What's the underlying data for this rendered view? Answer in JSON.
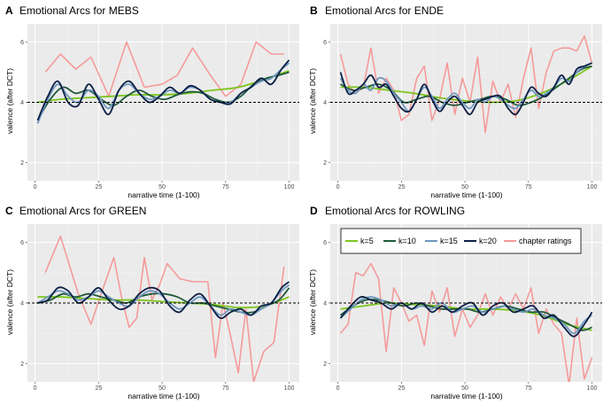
{
  "figure": {
    "width": 690,
    "height": 456
  },
  "legend": {
    "entries": [
      {
        "label": "k=5",
        "color": "#7cc51c"
      },
      {
        "label": "k=10",
        "color": "#1f5a3a"
      },
      {
        "label": "k=15",
        "color": "#6e98c0"
      },
      {
        "label": "k=20",
        "color": "#0d1f45"
      },
      {
        "label": "chapter ratings",
        "color": "#f59a9a"
      }
    ]
  },
  "chart_data": [
    {
      "type": "line",
      "panel": "A",
      "title": "Emotional Arcs for MEBS",
      "xlabel": "narrative time (1-100)",
      "ylabel": "valence (after DCT)",
      "xlim": [
        -3,
        104
      ],
      "ylim": [
        1.4,
        6.6
      ],
      "xticks": [
        0,
        25,
        50,
        75,
        100
      ],
      "yticks": [
        2,
        4,
        6
      ],
      "reference_line": 4,
      "series": [
        {
          "name": "chapter ratings",
          "x": [
            4,
            10,
            16,
            22,
            29,
            36,
            43,
            50,
            56,
            62,
            69,
            75,
            81,
            87,
            93,
            98
          ],
          "y": [
            5.0,
            5.6,
            5.1,
            5.5,
            4.2,
            6.0,
            4.5,
            4.6,
            4.9,
            5.8,
            4.9,
            4.2,
            4.6,
            6.0,
            5.6,
            5.6
          ]
        },
        {
          "name": "k=5",
          "x": [
            1,
            10,
            20,
            30,
            40,
            50,
            60,
            70,
            80,
            90,
            100
          ],
          "y": [
            4.0,
            4.1,
            4.15,
            4.2,
            4.25,
            4.25,
            4.3,
            4.4,
            4.5,
            4.75,
            5.05
          ]
        },
        {
          "name": "k=10",
          "x": [
            1,
            6,
            11,
            16,
            21,
            26,
            31,
            36,
            41,
            46,
            51,
            56,
            61,
            66,
            71,
            76,
            81,
            86,
            91,
            96,
            100
          ],
          "y": [
            3.4,
            4.1,
            4.5,
            4.3,
            4.4,
            4.1,
            3.9,
            4.2,
            4.4,
            4.2,
            4.1,
            4.25,
            4.35,
            4.3,
            4.1,
            4.0,
            4.2,
            4.6,
            4.8,
            4.9,
            5.0
          ]
        },
        {
          "name": "k=15",
          "x": [
            1,
            5,
            9,
            13,
            17,
            21,
            25,
            29,
            33,
            37,
            41,
            45,
            49,
            53,
            57,
            61,
            65,
            69,
            73,
            77,
            81,
            85,
            89,
            93,
            97,
            100
          ],
          "y": [
            3.3,
            4.1,
            4.6,
            4.2,
            4.0,
            4.4,
            4.2,
            3.8,
            4.4,
            4.6,
            4.3,
            4.1,
            4.2,
            4.4,
            4.3,
            4.5,
            4.4,
            4.1,
            4.0,
            4.0,
            4.3,
            4.5,
            4.7,
            4.8,
            5.1,
            5.3
          ]
        },
        {
          "name": "k=20",
          "x": [
            1,
            5,
            9,
            13,
            17,
            21,
            25,
            29,
            33,
            37,
            41,
            45,
            49,
            53,
            57,
            61,
            65,
            69,
            73,
            77,
            81,
            85,
            89,
            93,
            97,
            100
          ],
          "y": [
            3.4,
            4.2,
            4.7,
            4.0,
            3.9,
            4.6,
            4.1,
            3.6,
            4.4,
            4.7,
            4.3,
            4.0,
            4.2,
            4.5,
            4.3,
            4.55,
            4.4,
            4.1,
            4.0,
            3.95,
            4.3,
            4.5,
            4.8,
            4.6,
            5.1,
            5.4
          ]
        }
      ]
    },
    {
      "type": "line",
      "panel": "B",
      "title": "Emotional Arcs for ENDE",
      "xlabel": "narrative time (1-100)",
      "ylabel": "valence (after DCT)",
      "xlim": [
        -3,
        104
      ],
      "ylim": [
        1.4,
        6.6
      ],
      "xticks": [
        0,
        25,
        50,
        75,
        100
      ],
      "yticks": [
        2,
        4,
        6
      ],
      "reference_line": 4,
      "series": [
        {
          "name": "chapter ratings",
          "x": [
            1,
            4,
            7,
            10,
            13,
            16,
            19,
            22,
            25,
            28,
            31,
            34,
            37,
            40,
            43,
            46,
            49,
            52,
            55,
            58,
            61,
            64,
            67,
            70,
            73,
            76,
            79,
            82,
            85,
            88,
            91,
            94,
            97,
            100
          ],
          "y": [
            5.6,
            4.6,
            4.3,
            4.5,
            5.8,
            4.3,
            4.8,
            4.4,
            3.4,
            3.6,
            4.8,
            5.2,
            3.4,
            4.1,
            5.3,
            3.6,
            4.8,
            4.0,
            5.5,
            3.0,
            4.7,
            4.0,
            4.6,
            3.5,
            4.8,
            5.8,
            3.8,
            5.0,
            5.7,
            5.8,
            5.8,
            5.7,
            6.2,
            5.3
          ]
        },
        {
          "name": "k=5",
          "x": [
            1,
            10,
            20,
            30,
            40,
            50,
            60,
            70,
            80,
            90,
            100
          ],
          "y": [
            4.5,
            4.5,
            4.4,
            4.3,
            4.15,
            4.05,
            4.0,
            4.05,
            4.3,
            4.7,
            5.2
          ]
        },
        {
          "name": "k=10",
          "x": [
            1,
            6,
            11,
            16,
            21,
            26,
            31,
            36,
            41,
            46,
            51,
            56,
            61,
            66,
            71,
            76,
            81,
            86,
            91,
            96,
            100
          ],
          "y": [
            4.6,
            4.4,
            4.5,
            4.6,
            4.4,
            4.0,
            4.1,
            4.2,
            4.0,
            3.9,
            4.0,
            4.1,
            4.2,
            4.1,
            3.9,
            4.0,
            4.2,
            4.5,
            4.8,
            5.1,
            5.2
          ]
        },
        {
          "name": "k=15",
          "x": [
            1,
            4,
            7,
            10,
            13,
            16,
            19,
            22,
            25,
            28,
            31,
            34,
            37,
            40,
            43,
            46,
            49,
            52,
            55,
            58,
            61,
            64,
            67,
            70,
            73,
            76,
            79,
            82,
            85,
            88,
            91,
            94,
            97,
            100
          ],
          "y": [
            4.8,
            4.4,
            4.3,
            4.6,
            4.4,
            4.8,
            4.7,
            4.3,
            4.0,
            3.7,
            4.1,
            4.5,
            4.2,
            3.8,
            4.1,
            4.3,
            4.0,
            3.8,
            4.1,
            4.0,
            4.2,
            4.1,
            3.9,
            3.8,
            4.1,
            4.4,
            4.2,
            4.3,
            4.5,
            4.8,
            4.7,
            5.0,
            5.2,
            5.3
          ]
        },
        {
          "name": "k=20",
          "x": [
            1,
            4,
            7,
            10,
            13,
            16,
            19,
            22,
            25,
            28,
            31,
            34,
            37,
            40,
            43,
            46,
            49,
            52,
            55,
            58,
            61,
            64,
            67,
            70,
            73,
            76,
            79,
            82,
            85,
            88,
            91,
            94,
            97,
            100
          ],
          "y": [
            5.0,
            4.3,
            4.4,
            4.6,
            4.9,
            4.5,
            4.6,
            4.2,
            3.8,
            3.7,
            4.1,
            4.6,
            4.1,
            3.7,
            4.0,
            4.2,
            3.9,
            3.6,
            4.0,
            4.1,
            4.2,
            4.2,
            3.8,
            3.6,
            4.0,
            4.5,
            4.3,
            4.2,
            4.5,
            4.9,
            4.6,
            5.1,
            5.2,
            5.3
          ]
        }
      ]
    },
    {
      "type": "line",
      "panel": "C",
      "title": "Emotional Arcs for GREEN",
      "xlabel": "narrative time (1-100)",
      "ylabel": "valence (after DCT)",
      "xlim": [
        -3,
        104
      ],
      "ylim": [
        1.4,
        6.6
      ],
      "xticks": [
        0,
        25,
        50,
        75,
        100
      ],
      "yticks": [
        2,
        4,
        6
      ],
      "reference_line": 4,
      "series": [
        {
          "name": "chapter ratings",
          "x": [
            4,
            10,
            17,
            22,
            26,
            31,
            34,
            37,
            40,
            43,
            46,
            49,
            52,
            57,
            62,
            68,
            71,
            74,
            77,
            80,
            83,
            86,
            90,
            94,
            98
          ],
          "y": [
            5.0,
            6.2,
            4.3,
            3.3,
            4.3,
            5.5,
            4.2,
            3.2,
            3.5,
            5.5,
            4.1,
            4.6,
            5.3,
            4.8,
            4.7,
            4.7,
            2.2,
            4.0,
            2.9,
            1.7,
            3.8,
            1.4,
            2.4,
            2.7,
            5.2
          ]
        },
        {
          "name": "k=5",
          "x": [
            1,
            10,
            20,
            30,
            40,
            50,
            60,
            70,
            80,
            90,
            100
          ],
          "y": [
            4.2,
            4.2,
            4.15,
            4.1,
            4.1,
            4.05,
            4.0,
            3.95,
            3.85,
            3.9,
            4.2
          ]
        },
        {
          "name": "k=10",
          "x": [
            1,
            6,
            11,
            16,
            21,
            26,
            31,
            36,
            41,
            46,
            51,
            56,
            61,
            66,
            71,
            76,
            81,
            86,
            91,
            96,
            100
          ],
          "y": [
            4.0,
            4.1,
            4.3,
            4.2,
            4.3,
            4.2,
            4.1,
            4.0,
            4.2,
            4.3,
            4.3,
            4.2,
            4.0,
            4.0,
            3.9,
            3.8,
            3.7,
            3.7,
            3.9,
            4.1,
            4.5
          ]
        },
        {
          "name": "k=15",
          "x": [
            1,
            5,
            9,
            13,
            17,
            21,
            25,
            29,
            33,
            37,
            41,
            45,
            49,
            53,
            57,
            61,
            65,
            69,
            73,
            77,
            81,
            85,
            89,
            93,
            97,
            100
          ],
          "y": [
            4.0,
            4.2,
            4.4,
            4.3,
            4.1,
            4.2,
            4.4,
            4.2,
            4.0,
            3.9,
            4.2,
            4.4,
            4.3,
            4.0,
            3.8,
            4.0,
            4.2,
            3.9,
            3.6,
            3.8,
            3.7,
            3.6,
            3.8,
            4.0,
            4.4,
            4.6
          ]
        },
        {
          "name": "k=20",
          "x": [
            1,
            5,
            9,
            13,
            17,
            21,
            25,
            29,
            33,
            37,
            41,
            45,
            49,
            53,
            57,
            61,
            65,
            69,
            73,
            77,
            81,
            85,
            89,
            93,
            97,
            100
          ],
          "y": [
            4.0,
            4.1,
            4.5,
            4.4,
            4.0,
            4.2,
            4.5,
            4.1,
            3.8,
            3.9,
            4.3,
            4.5,
            4.4,
            3.9,
            3.7,
            4.1,
            4.3,
            3.9,
            3.5,
            3.7,
            3.8,
            3.6,
            3.9,
            4.0,
            4.5,
            4.7
          ]
        }
      ]
    },
    {
      "type": "line",
      "panel": "D",
      "title": "Emotional Arcs for ROWLING",
      "xlabel": "narrative time (1-100)",
      "ylabel": "valence (after DCT)",
      "xlim": [
        -3,
        104
      ],
      "ylim": [
        1.4,
        6.6
      ],
      "xticks": [
        0,
        25,
        50,
        75,
        100
      ],
      "yticks": [
        2,
        4,
        6
      ],
      "reference_line": 4,
      "legend": "top",
      "series": [
        {
          "name": "chapter ratings",
          "x": [
            1,
            4,
            7,
            10,
            13,
            16,
            19,
            22,
            25,
            28,
            31,
            34,
            37,
            40,
            43,
            46,
            49,
            52,
            55,
            58,
            61,
            64,
            67,
            70,
            73,
            76,
            79,
            82,
            85,
            88,
            91,
            94,
            97,
            100
          ],
          "y": [
            3.0,
            3.3,
            5.0,
            4.9,
            5.3,
            4.8,
            2.4,
            4.5,
            4.0,
            3.4,
            3.6,
            2.6,
            4.4,
            3.7,
            4.5,
            2.9,
            3.8,
            3.2,
            3.6,
            4.3,
            3.6,
            4.2,
            3.8,
            4.3,
            3.8,
            4.5,
            3.0,
            3.8,
            3.3,
            3.0,
            1.3,
            3.5,
            1.5,
            2.2
          ]
        },
        {
          "name": "k=5",
          "x": [
            1,
            10,
            20,
            30,
            40,
            50,
            60,
            70,
            80,
            90,
            100
          ],
          "y": [
            3.8,
            3.9,
            4.0,
            3.95,
            3.9,
            3.8,
            3.8,
            3.75,
            3.6,
            3.3,
            3.1
          ]
        },
        {
          "name": "k=10",
          "x": [
            1,
            6,
            11,
            16,
            21,
            26,
            31,
            36,
            41,
            46,
            51,
            56,
            61,
            66,
            71,
            76,
            81,
            86,
            91,
            96,
            100
          ],
          "y": [
            3.6,
            3.9,
            4.1,
            4.1,
            4.0,
            3.9,
            4.0,
            3.9,
            3.8,
            3.8,
            3.8,
            3.7,
            3.8,
            3.9,
            3.8,
            3.7,
            3.7,
            3.5,
            3.3,
            3.1,
            3.2
          ]
        },
        {
          "name": "k=15",
          "x": [
            1,
            5,
            9,
            13,
            17,
            21,
            25,
            29,
            33,
            37,
            41,
            45,
            49,
            53,
            57,
            61,
            65,
            69,
            73,
            77,
            81,
            85,
            89,
            93,
            97,
            100
          ],
          "y": [
            3.5,
            3.8,
            4.1,
            4.2,
            4.1,
            3.9,
            4.0,
            3.8,
            3.9,
            3.8,
            4.0,
            3.7,
            3.8,
            3.9,
            3.7,
            3.8,
            3.9,
            3.8,
            3.7,
            3.8,
            3.6,
            3.5,
            3.3,
            3.0,
            3.4,
            3.6
          ]
        },
        {
          "name": "k=20",
          "x": [
            1,
            5,
            9,
            13,
            17,
            21,
            25,
            29,
            33,
            37,
            41,
            45,
            49,
            53,
            57,
            61,
            65,
            69,
            73,
            77,
            81,
            85,
            89,
            93,
            97,
            100
          ],
          "y": [
            3.5,
            3.9,
            4.2,
            4.1,
            4.0,
            3.8,
            4.0,
            3.8,
            4.0,
            3.7,
            3.9,
            3.7,
            3.9,
            4.0,
            3.6,
            3.9,
            4.0,
            3.7,
            3.8,
            3.9,
            3.5,
            3.6,
            3.2,
            2.9,
            3.3,
            3.7
          ]
        }
      ]
    }
  ]
}
